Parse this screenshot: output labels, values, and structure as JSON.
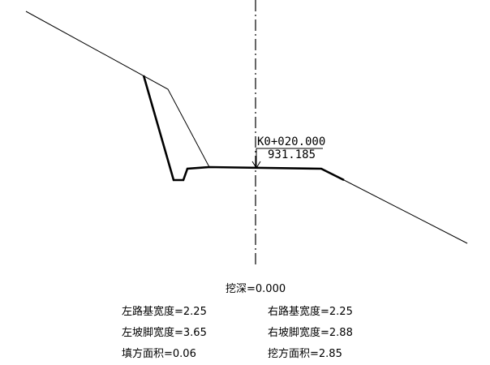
{
  "station": "K0+020.000",
  "elevation": "931.185",
  "cut_depth": "挖深=0.000",
  "left_subgrade_width": "左路基宽度=2.25",
  "right_subgrade_width": "右路基宽度=2.25",
  "left_slope_toe_width": "左坡脚宽度=3.65",
  "right_slope_toe_width": "右坡脚宽度=2.88",
  "fill_area": "填方面积=0.06",
  "cut_area": "挖方面积=2.85",
  "line_color": "#000000"
}
